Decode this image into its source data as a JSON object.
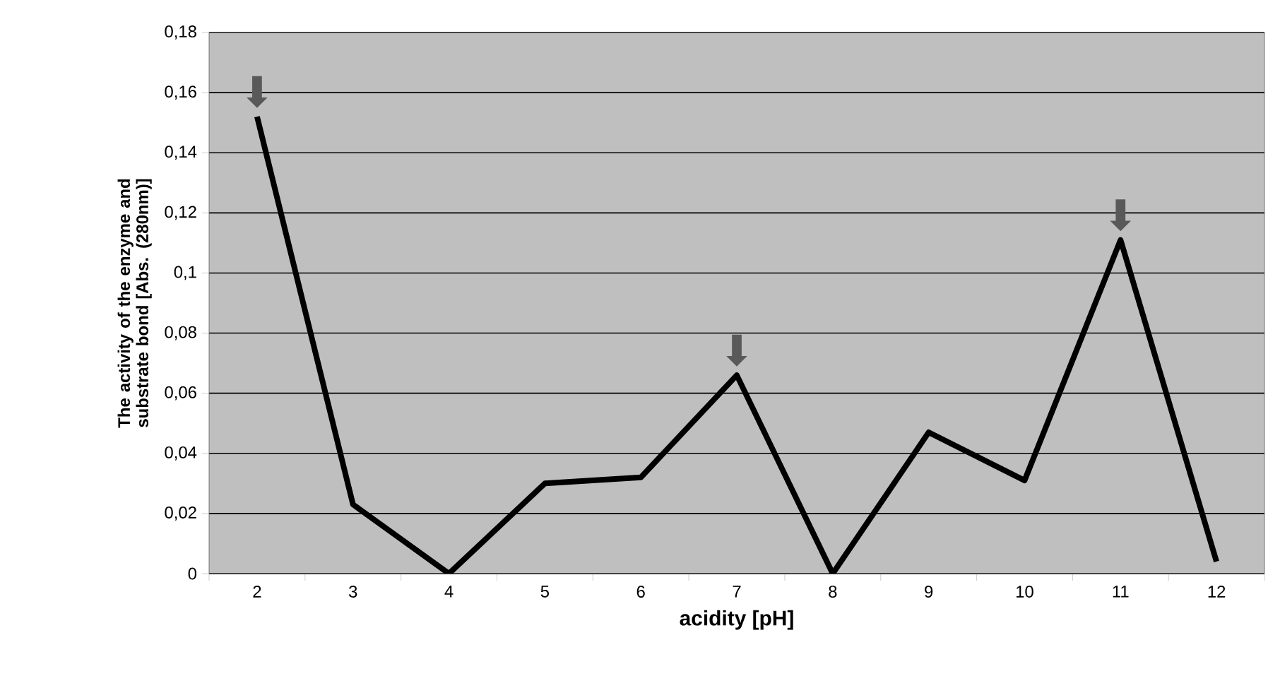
{
  "chart_data": {
    "type": "line",
    "xlabel": "acidity  [pH]",
    "ylabel": "The activity of the enzyme and substrate bond [Abs. (280nm)]",
    "categories": [
      "2",
      "3",
      "4",
      "5",
      "6",
      "7",
      "8",
      "9",
      "10",
      "11",
      "12"
    ],
    "values": [
      0.152,
      0.023,
      0,
      0.03,
      0.032,
      0.066,
      0,
      0.047,
      0.031,
      0.111,
      0.004
    ],
    "color": "#000000",
    "ylim": [
      0,
      0.18
    ],
    "yticks": [
      0,
      {
        "value": 0.02,
        "label": "0,02"
      },
      {
        "value": 0.04,
        "label": "0,04"
      },
      {
        "value": 0.06,
        "label": "0,06"
      },
      {
        "value": 0.08,
        "label": "0,08"
      },
      {
        "value": 0.1,
        "label": "0,1"
      },
      {
        "value": 0.12,
        "label": "0,12"
      },
      {
        "value": 0.14,
        "label": "0,14"
      },
      {
        "value": 0.16,
        "label": "0,16"
      },
      {
        "value": 0.18,
        "label": "0,18"
      }
    ],
    "grid": "y",
    "marker": "none",
    "line_style": "solid",
    "annotations": [
      {
        "text": "⬇",
        "x": "2",
        "y": 0.152
      },
      {
        "text": "⬇",
        "x": "7",
        "y": 0.066
      },
      {
        "text": "⬇",
        "x": "11",
        "y": 0.111
      }
    ]
  }
}
